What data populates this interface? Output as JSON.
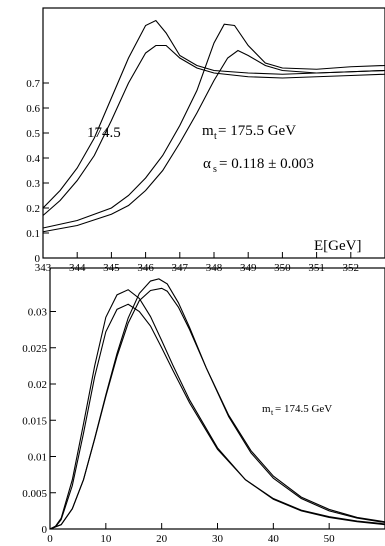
{
  "chart_data": [
    {
      "type": "line",
      "title": "",
      "xlabel": "E[GeV]",
      "ylabel": "",
      "xlim": [
        343,
        353
      ],
      "ylim": [
        0,
        1.0
      ],
      "xticks": [
        "343",
        "344",
        "345",
        "346",
        "347",
        "348",
        "349",
        "350",
        "351",
        "352"
      ],
      "xtick_values": [
        343,
        344,
        345,
        346,
        347,
        348,
        349,
        350,
        351,
        352
      ],
      "yticks": [
        "0",
        "0.1",
        "0.2",
        "0.3",
        "0.4",
        "0.5",
        "0.6",
        "0.7"
      ],
      "ytick_values": [
        0,
        0.1,
        0.2,
        0.3,
        0.4,
        0.5,
        0.6,
        0.7
      ],
      "annotations": {
        "mass_label": "174.5",
        "mt_symbol": "m",
        "mt_sub": "t",
        "mt_value": " = 175.5 GeV",
        "alpha_symbol": "α",
        "alpha_sub": "s",
        "alpha_value": " = 0.118 ± 0.003"
      },
      "series": [
        {
          "x": [
            343,
            343.5,
            344,
            344.5,
            345,
            345.5,
            346,
            346.3,
            346.6,
            347,
            347.5,
            348,
            349,
            350,
            351,
            352,
            353
          ],
          "y": [
            0.2,
            0.27,
            0.36,
            0.48,
            0.64,
            0.8,
            0.93,
            0.95,
            0.9,
            0.81,
            0.77,
            0.75,
            0.74,
            0.735,
            0.74,
            0.745,
            0.75
          ]
        },
        {
          "x": [
            343,
            343.5,
            344,
            344.5,
            345,
            345.5,
            346,
            346.3,
            346.6,
            347,
            347.5,
            348,
            349,
            350,
            351,
            352,
            353
          ],
          "y": [
            0.17,
            0.23,
            0.31,
            0.41,
            0.55,
            0.7,
            0.82,
            0.85,
            0.85,
            0.8,
            0.76,
            0.74,
            0.725,
            0.72,
            0.725,
            0.73,
            0.735
          ]
        },
        {
          "x": [
            343,
            344,
            345,
            345.5,
            346,
            346.5,
            347,
            347.5,
            348,
            348.3,
            348.6,
            349,
            349.5,
            350,
            351,
            352,
            353
          ],
          "y": [
            0.12,
            0.15,
            0.2,
            0.25,
            0.32,
            0.41,
            0.53,
            0.67,
            0.86,
            0.935,
            0.93,
            0.85,
            0.78,
            0.76,
            0.755,
            0.765,
            0.77
          ]
        },
        {
          "x": [
            343,
            344,
            345,
            345.5,
            346,
            346.5,
            347,
            347.5,
            348,
            348.4,
            348.7,
            349,
            349.5,
            350,
            351,
            352,
            353
          ],
          "y": [
            0.105,
            0.13,
            0.175,
            0.21,
            0.27,
            0.35,
            0.46,
            0.58,
            0.71,
            0.8,
            0.83,
            0.81,
            0.77,
            0.75,
            0.74,
            0.745,
            0.75
          ]
        }
      ]
    },
    {
      "type": "line",
      "title": "",
      "xlabel": "",
      "ylabel": "",
      "xlim": [
        0,
        60
      ],
      "ylim": [
        0,
        0.036
      ],
      "xticks": [
        "0",
        "10",
        "20",
        "30",
        "40",
        "50"
      ],
      "xtick_values": [
        0,
        10,
        20,
        30,
        40,
        50
      ],
      "yticks": [
        "0",
        "0.005",
        "0.01",
        "0.015",
        "0.02",
        "0.025",
        "0.03"
      ],
      "ytick_values": [
        0,
        0.005,
        0.01,
        0.015,
        0.02,
        0.025,
        0.03
      ],
      "annotations": {
        "mt_symbol": "m",
        "mt_sub": "t",
        "mt_value": " = 174.5 GeV"
      },
      "series": [
        {
          "x": [
            0,
            1,
            2,
            4,
            6,
            8,
            10,
            12,
            14,
            16,
            18,
            20,
            22,
            25,
            30,
            35,
            40,
            45,
            50,
            55,
            60
          ],
          "y": [
            0,
            0.0004,
            0.0015,
            0.0068,
            0.0145,
            0.0225,
            0.0292,
            0.0323,
            0.033,
            0.0318,
            0.0293,
            0.026,
            0.0226,
            0.0178,
            0.0112,
            0.0068,
            0.0041,
            0.0025,
            0.0016,
            0.001,
            0.0006
          ]
        },
        {
          "x": [
            0,
            1,
            2,
            4,
            6,
            8,
            10,
            12,
            14,
            16,
            18,
            20,
            22,
            25,
            30,
            35,
            40,
            45,
            50,
            55,
            60
          ],
          "y": [
            0,
            0.0003,
            0.0013,
            0.006,
            0.0132,
            0.021,
            0.0272,
            0.0303,
            0.031,
            0.03,
            0.028,
            0.025,
            0.0219,
            0.0174,
            0.011,
            0.0068,
            0.0042,
            0.0026,
            0.0017,
            0.0011,
            0.0007
          ]
        },
        {
          "x": [
            0,
            2,
            4,
            6,
            8,
            10,
            12,
            14,
            16,
            18,
            19.5,
            21,
            23,
            25,
            28,
            32,
            36,
            40,
            45,
            50,
            55,
            60
          ],
          "y": [
            0,
            0.0006,
            0.0028,
            0.0068,
            0.0125,
            0.0185,
            0.0242,
            0.0291,
            0.0325,
            0.0342,
            0.0345,
            0.0338,
            0.0312,
            0.0278,
            0.0222,
            0.0155,
            0.0105,
            0.007,
            0.0042,
            0.0025,
            0.0015,
            0.0009
          ]
        },
        {
          "x": [
            0,
            2,
            4,
            6,
            8,
            10,
            12,
            14,
            16,
            18,
            20,
            21,
            23,
            25,
            28,
            32,
            36,
            40,
            45,
            50,
            55,
            60
          ],
          "y": [
            0,
            0.0006,
            0.0028,
            0.0068,
            0.0124,
            0.0183,
            0.0238,
            0.0284,
            0.0315,
            0.0329,
            0.0332,
            0.0328,
            0.0306,
            0.0275,
            0.0222,
            0.0157,
            0.0108,
            0.0073,
            0.0044,
            0.0027,
            0.0016,
            0.001
          ]
        }
      ]
    }
  ]
}
